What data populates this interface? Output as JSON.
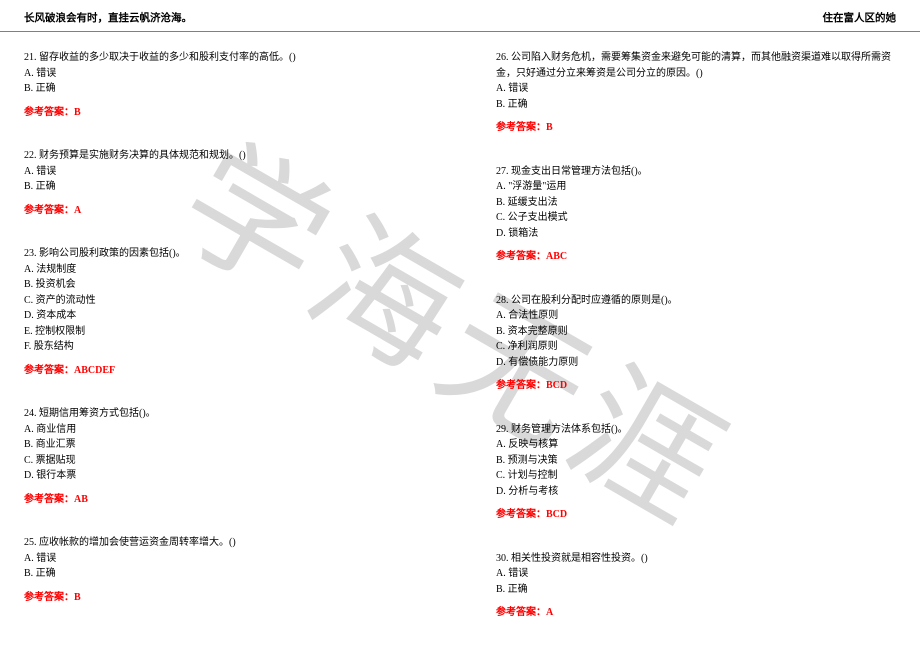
{
  "header": {
    "left": "长风破浪会有时，直挂云帆济沧海。",
    "right": "住在富人区的她"
  },
  "watermark": "学海无涯",
  "columns": {
    "left": [
      {
        "question": "21. 留存收益的多少取决于收益的多少和股利支付率的高低。()",
        "options": [
          "A. 错误",
          "B. 正确"
        ],
        "answer_label": "参考答案：",
        "answer_value": "B"
      },
      {
        "question": "22. 财务预算是实施财务决算的具体规范和规划。()",
        "options": [
          "A. 错误",
          "B. 正确"
        ],
        "answer_label": "参考答案：",
        "answer_value": "A"
      },
      {
        "question": "23. 影响公司股利政策的因素包括()。",
        "options": [
          "A. 法规制度",
          "B. 投资机会",
          "C. 资产的流动性",
          "D. 资本成本",
          "E. 控制权限制",
          "F. 股东结构"
        ],
        "answer_label": "参考答案：",
        "answer_value": "ABCDEF"
      },
      {
        "question": "24. 短期信用筹资方式包括()。",
        "options": [
          "A. 商业信用",
          "B. 商业汇票",
          "C. 票据贴现",
          "D. 银行本票"
        ],
        "answer_label": "参考答案：",
        "answer_value": "AB"
      },
      {
        "question": "25. 应收帐款的增加会使营运资金周转率增大。()",
        "options": [
          "A. 错误",
          "B. 正确"
        ],
        "answer_label": "参考答案：",
        "answer_value": "B"
      }
    ],
    "right": [
      {
        "question": "26. 公司陷入财务危机，需要筹集资金来避免可能的清算，而其他融资渠道难以取得所需资金，只好通过分立来筹资是公司分立的原因。()",
        "options": [
          "A. 错误",
          "B. 正确"
        ],
        "answer_label": "参考答案：",
        "answer_value": "B"
      },
      {
        "question": "27. 现金支出日常管理方法包括()。",
        "options": [
          "A. \"浮游量\"运用",
          "B. 延缓支出法",
          "C. 公子支出模式",
          "D. 锁箱法"
        ],
        "answer_label": "参考答案：",
        "answer_value": "ABC"
      },
      {
        "question": "28. 公司在股利分配时应遵循的原则是()。",
        "options": [
          "A. 合法性原则",
          "B. 资本完整原则",
          "C. 净利润原则",
          "D. 有偿债能力原则"
        ],
        "answer_label": "参考答案：",
        "answer_value": "BCD"
      },
      {
        "question": "29. 财务管理方法体系包括()。",
        "options": [
          "A. 反映与核算",
          "B. 预测与决策",
          "C. 计划与控制",
          "D. 分析与考核"
        ],
        "answer_label": "参考答案：",
        "answer_value": "BCD"
      },
      {
        "question": "30. 相关性投资就是相容性投资。()",
        "options": [
          "A. 错误",
          "B. 正确"
        ],
        "answer_label": "参考答案：",
        "answer_value": "A"
      }
    ]
  }
}
